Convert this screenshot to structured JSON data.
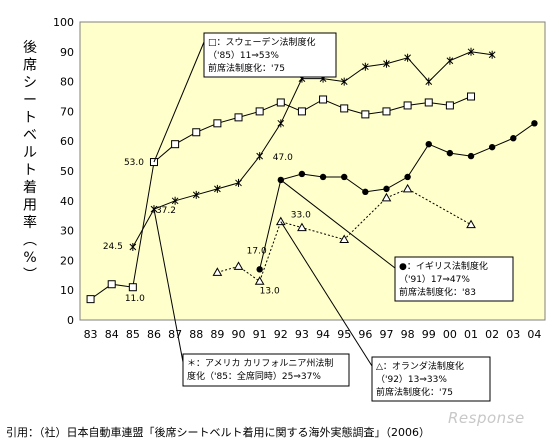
{
  "chart_data": {
    "type": "line",
    "ylabel": "後席シートベルト着用率（%）",
    "ylim": [
      0,
      100
    ],
    "yticks": [
      0,
      10,
      20,
      30,
      40,
      50,
      60,
      70,
      80,
      90,
      100
    ],
    "categories": [
      "83",
      "84",
      "85",
      "86",
      "87",
      "88",
      "89",
      "90",
      "91",
      "92",
      "93",
      "94",
      "95",
      "96",
      "97",
      "98",
      "99",
      "00",
      "01",
      "02",
      "03",
      "04"
    ],
    "grid": false,
    "series": [
      {
        "key": "sweden",
        "marker": "square-open",
        "line": "solid",
        "values": [
          7,
          12,
          11,
          53,
          59,
          63,
          66,
          68,
          70,
          73,
          70,
          74,
          71,
          69,
          70,
          72,
          73,
          72,
          75,
          null,
          null,
          null
        ]
      },
      {
        "key": "california",
        "marker": "cross",
        "line": "solid",
        "values": [
          null,
          null,
          24.5,
          37.2,
          40,
          42,
          44,
          46,
          55,
          66,
          81,
          81,
          80,
          85,
          86,
          88,
          80,
          87,
          90,
          89,
          null,
          null
        ]
      },
      {
        "key": "uk",
        "marker": "dot-filled",
        "line": "solid",
        "values": [
          null,
          null,
          null,
          null,
          null,
          null,
          null,
          null,
          17,
          47,
          49,
          48,
          48,
          43,
          44,
          48,
          59,
          56,
          55,
          58,
          61,
          66
        ]
      },
      {
        "key": "netherlands",
        "marker": "triangle-open",
        "line": "dotted",
        "values": [
          null,
          null,
          null,
          null,
          null,
          null,
          16,
          18,
          13,
          33,
          31,
          null,
          27,
          null,
          41,
          44,
          null,
          null,
          32,
          null,
          null,
          null
        ]
      }
    ],
    "data_labels": [
      {
        "text": "24.5",
        "series": "california",
        "index": 2
      },
      {
        "text": "11.0",
        "series": "sweden",
        "index": 2
      },
      {
        "text": "53.0",
        "series": "sweden",
        "index": 3
      },
      {
        "text": "37.2",
        "series": "california",
        "index": 3
      },
      {
        "text": "17.0",
        "series": "uk",
        "index": 8
      },
      {
        "text": "13.0",
        "series": "netherlands",
        "index": 8
      },
      {
        "text": "47.0",
        "series": "uk",
        "index": 9
      },
      {
        "text": "33.0",
        "series": "netherlands",
        "index": 9
      }
    ],
    "annotations": {
      "sweden": [
        "□：スウェーデン法制度化",
        "（'85）11⇒53%",
        "前席法制度化：'75"
      ],
      "uk": [
        "●：イギリス法制度化",
        "（'91）17⇒47%",
        "前席法制度化：'83"
      ],
      "california": [
        "＊：アメリカ カリフォルニア州法制",
        "度化（'85：全席同時）25⇒37%"
      ],
      "netherlands": [
        "△：オランダ法制度化",
        "（'92）13⇒33%",
        "前席法制度化：'75"
      ]
    }
  },
  "caption": "引用：（社）日本自動車連盟「後席シートベルト着用に関する海外実態調査」（2006）",
  "watermark": "Response",
  "colors": {
    "plot_bg": "#ffffcc",
    "plot_border": "#808080",
    "line": "#000000",
    "box_bg": "#ffffff"
  }
}
